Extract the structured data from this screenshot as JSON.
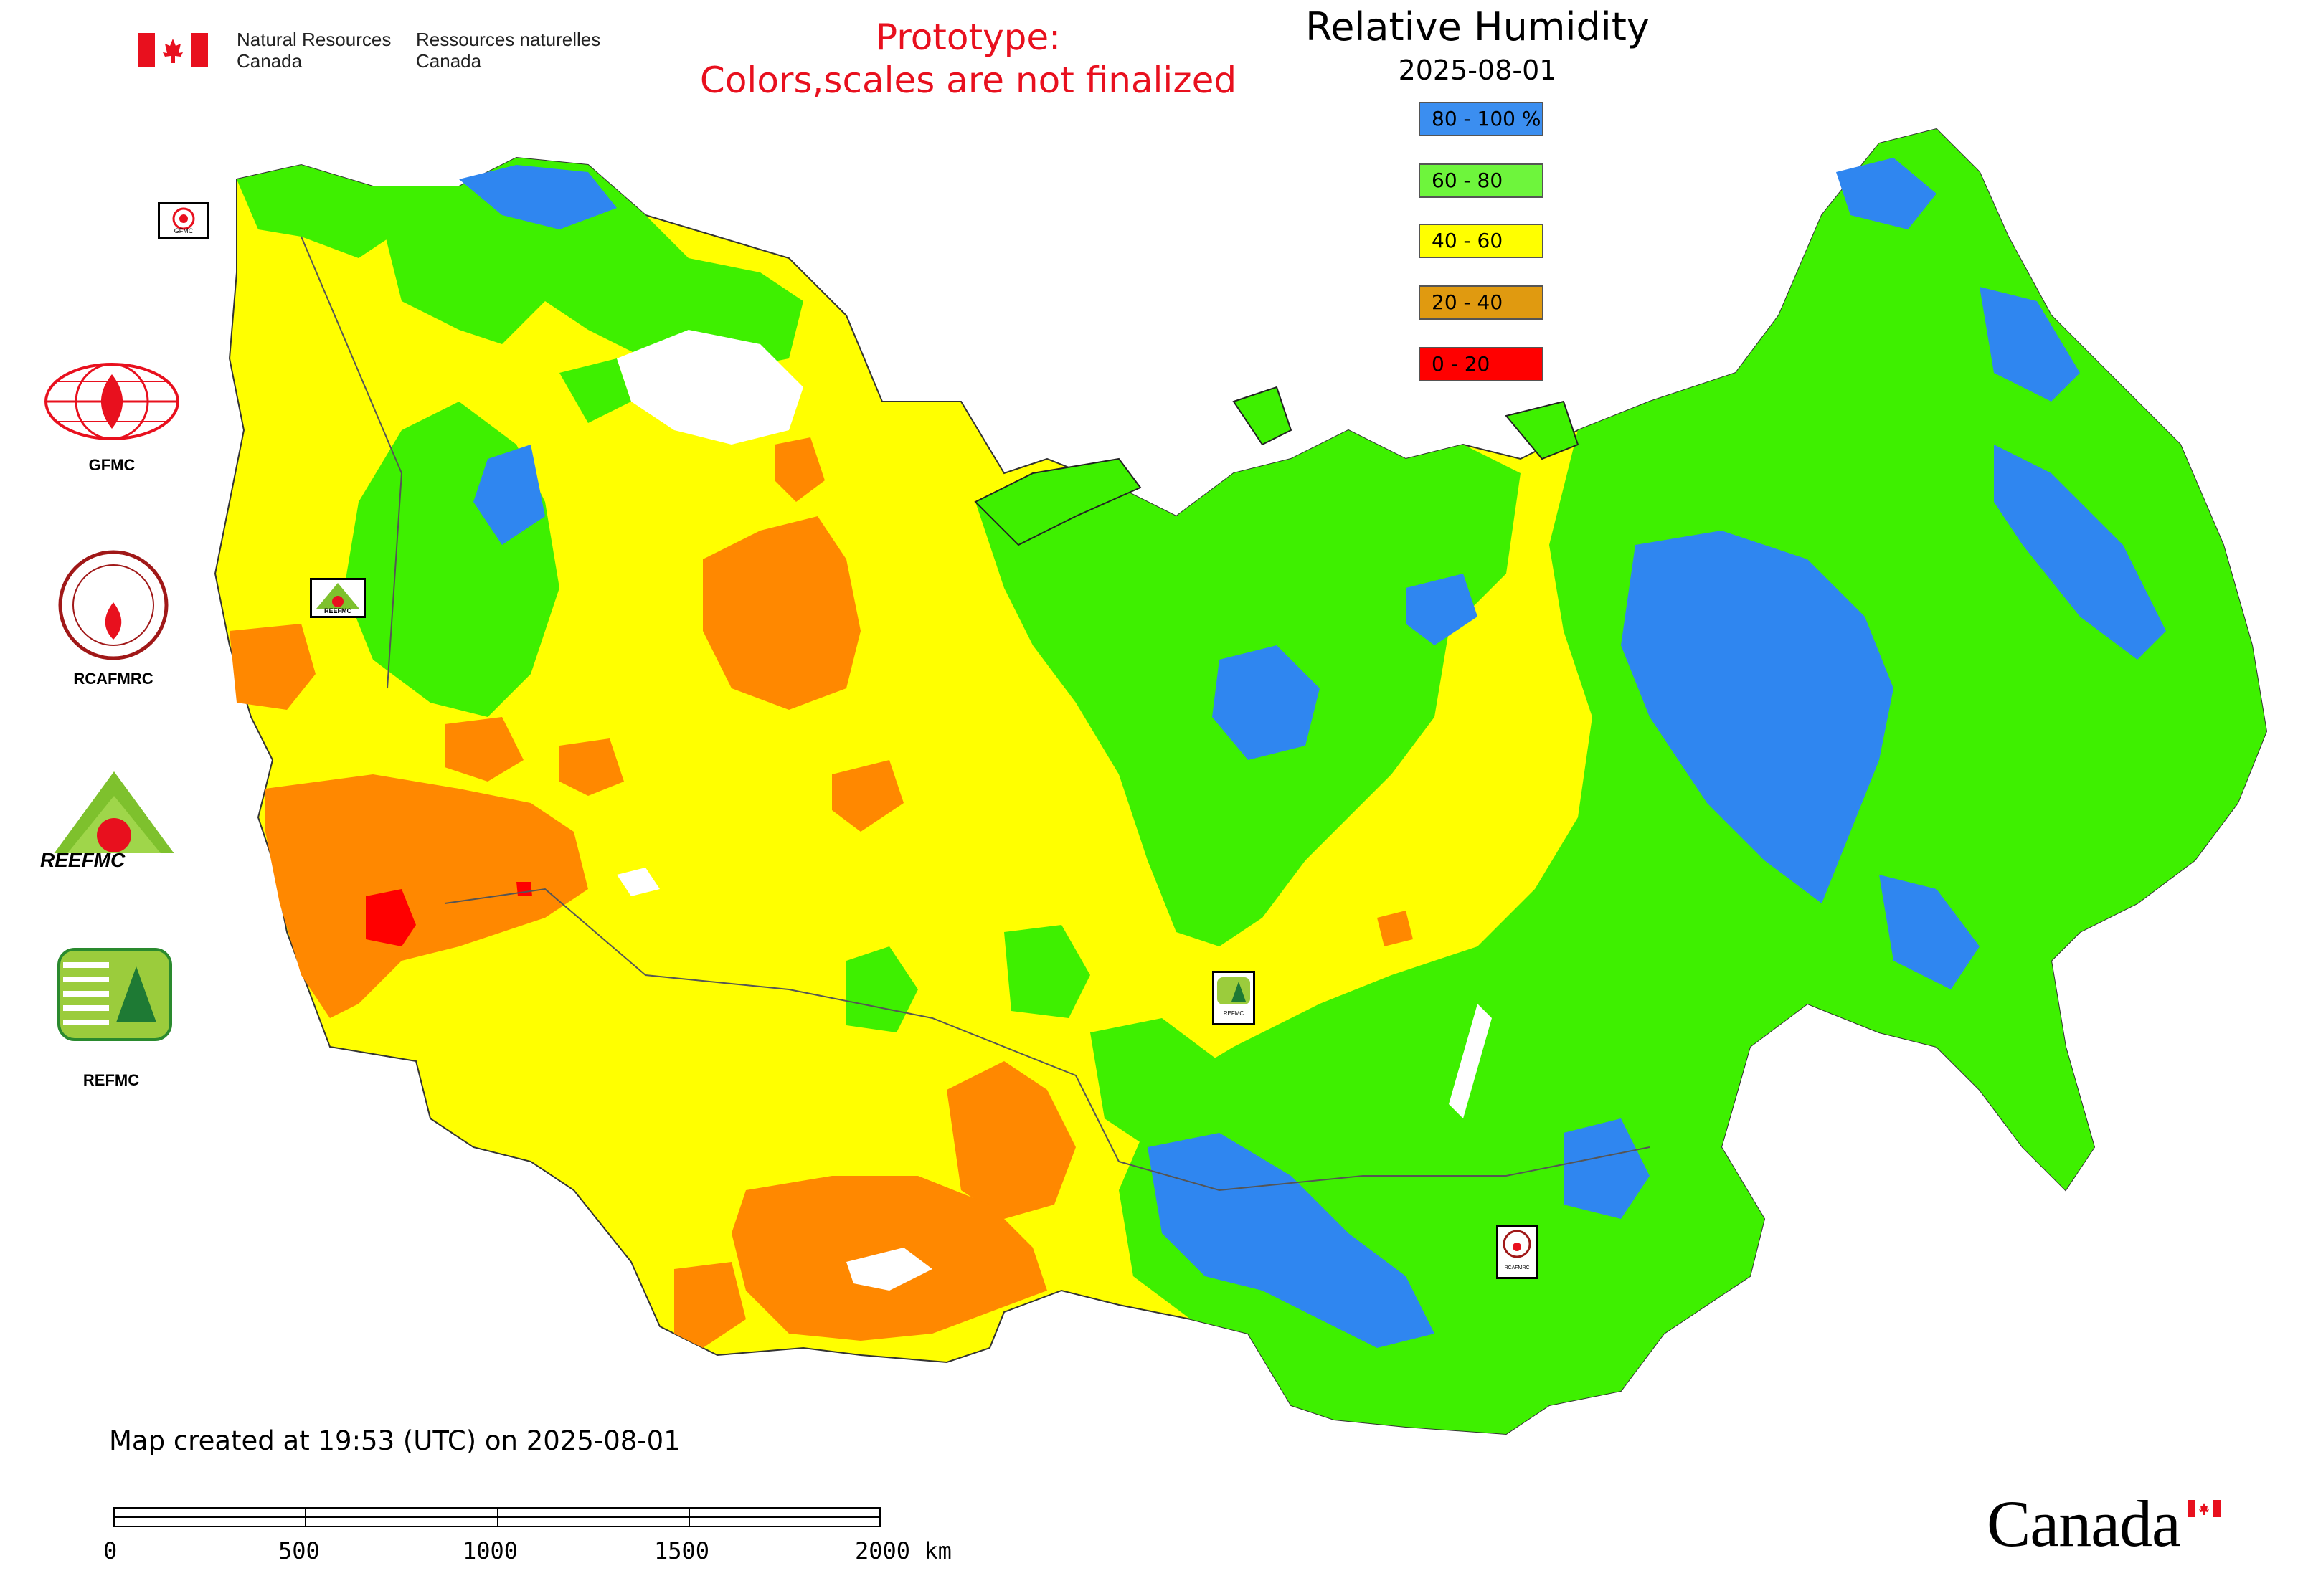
{
  "header": {
    "agency_en_line1": "Natural Resources",
    "agency_en_line2": "Canada",
    "agency_fr_line1": "Ressources naturelles",
    "agency_fr_line2": "Canada",
    "prototype_line1": "Prototype:",
    "prototype_line2": "Colors,scales are not finalized"
  },
  "map": {
    "title": "Relative Humidity",
    "date": "2025-08-01",
    "legend": [
      {
        "label": "80 - 100 %",
        "color": "#3b8ef0"
      },
      {
        "label": "60 - 80",
        "color": "#6ef53c"
      },
      {
        "label": "40 - 60",
        "color": "#ffff00"
      },
      {
        "label": "20 - 40",
        "color": "#e09a10"
      },
      {
        "label": "0 - 20",
        "color": "#ff0000"
      }
    ],
    "centers": [
      {
        "name": "GFMC",
        "icon": "gfmc-logo-icon"
      },
      {
        "name": "RCAFMRC",
        "icon": "rcafmrc-logo-icon"
      },
      {
        "name": "REEFMC",
        "icon": "reefmc-logo-icon"
      },
      {
        "name": "REFMC",
        "icon": "refmc-logo-icon"
      }
    ],
    "map_marker_labels": [
      "GFMC",
      "REEFMC",
      "REFMC",
      "RCAFMRC"
    ]
  },
  "footer": {
    "created": "Map created at 19:53 (UTC) on 2025-08-01",
    "scale_labels": [
      "0",
      "500",
      "1000",
      "1500",
      "2000 km"
    ],
    "wordmark": "Canada"
  },
  "colors": {
    "very_humid": "#2f86f0",
    "humid": "#3ef000",
    "moderate": "#ffff00",
    "dry": "#ff8800",
    "very_dry": "#ff0000",
    "prototype_text": "#e8101e",
    "flag_red": "#e8101e"
  }
}
